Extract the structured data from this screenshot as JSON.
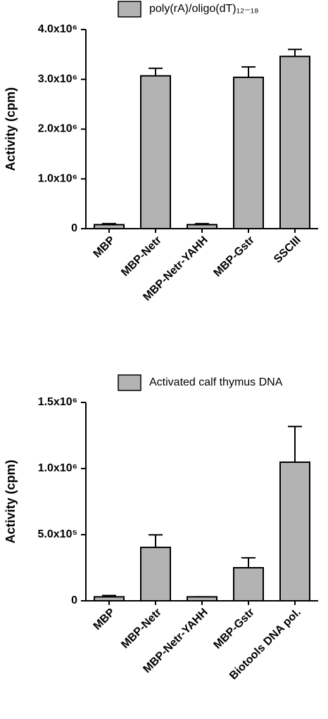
{
  "chart_data": [
    {
      "type": "bar",
      "legend": "poly(rA)/oligo(dT)₁₂₋₁₈",
      "y_label": "Activity (cpm)",
      "categories": [
        "MBP",
        "MBP-Netr",
        "MBP-Netr-YAHH",
        "MBP-Gstr",
        "SSCIII"
      ],
      "values": [
        80000,
        3070000,
        80000,
        3040000,
        3460000
      ],
      "errors": [
        20000,
        150000,
        20000,
        210000,
        140000
      ],
      "color": "#b3b3b3",
      "ylim": [
        0,
        4000000
      ],
      "yticks": [
        {
          "value": 0,
          "label": "0"
        },
        {
          "value": 1000000,
          "label": "1.0x10⁶"
        },
        {
          "value": 2000000,
          "label": "2.0x10⁶"
        },
        {
          "value": 3000000,
          "label": "3.0x10⁶"
        },
        {
          "value": 4000000,
          "label": "4.0x10⁶"
        }
      ]
    },
    {
      "type": "bar",
      "legend": "Activated calf thymus DNA",
      "y_label": "Activity (cpm)",
      "categories": [
        "MBP",
        "MBP-Netr",
        "MBP-Netr-YAHH",
        "MBP-Gstr",
        "Biotools DNA pol."
      ],
      "values": [
        30000,
        404000,
        30000,
        250000,
        1048000
      ],
      "errors": [
        10000,
        95000,
        0,
        75000,
        270000
      ],
      "color": "#b3b3b3",
      "ylim": [
        0,
        1500000
      ],
      "yticks": [
        {
          "value": 0,
          "label": "0"
        },
        {
          "value": 500000,
          "label": "5.0x10⁵"
        },
        {
          "value": 1000000,
          "label": "1.0x10⁶"
        },
        {
          "value": 1500000,
          "label": "1.5x10⁶"
        }
      ]
    }
  ]
}
